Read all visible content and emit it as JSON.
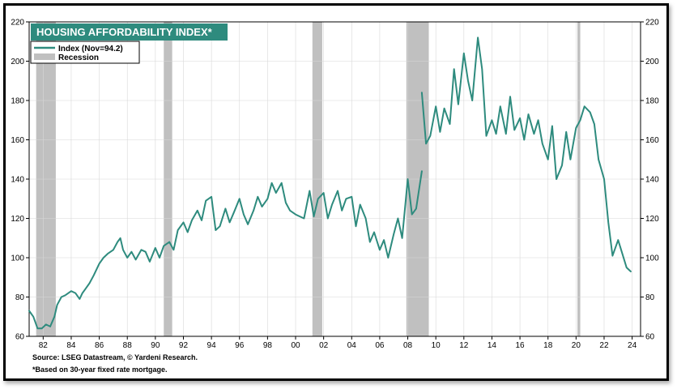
{
  "chart_data": {
    "type": "line",
    "title": "HOUSING AFFORDABILITY INDEX*",
    "legend": [
      {
        "label": "Index (Nov=94.2)",
        "kind": "line",
        "color": "#2e8b7e"
      },
      {
        "label": "Recession",
        "kind": "band",
        "color": "#c0c0c0"
      }
    ],
    "legend_placement": "top-left",
    "grid": true,
    "ylim": [
      60,
      220
    ],
    "y_ticks": [
      "60",
      "80",
      "100",
      "120",
      "140",
      "160",
      "180",
      "200",
      "220"
    ],
    "xlim": [
      1981,
      2024.6
    ],
    "x_ticks": [
      "82",
      "84",
      "86",
      "88",
      "90",
      "92",
      "94",
      "96",
      "98",
      "00",
      "02",
      "04",
      "06",
      "08",
      "10",
      "12",
      "14",
      "16",
      "18",
      "20",
      "22",
      "24"
    ],
    "recessions": [
      [
        1981.5,
        1982.9
      ],
      [
        1990.6,
        1991.2
      ],
      [
        2001.2,
        2001.9
      ],
      [
        2007.9,
        2009.5
      ],
      [
        2020.1,
        2020.3
      ]
    ],
    "series": [
      {
        "name": "Index (Nov=94.2)",
        "color": "#2e8b7e",
        "segments": [
          {
            "x": [
              1981.0,
              1981.3,
              1981.6,
              1981.9,
              1982.2,
              1982.5,
              1982.8,
              1983.0,
              1983.3,
              1983.6,
              1984.0,
              1984.3,
              1984.6,
              1984.8,
              1985.0,
              1985.3,
              1985.6,
              1986.0,
              1986.3,
              1986.6,
              1987.0,
              1987.3,
              1987.5,
              1987.7,
              1988.0,
              1988.3,
              1988.6,
              1989.0,
              1989.3,
              1989.6,
              1990.0,
              1990.3,
              1990.6,
              1991.0,
              1991.3,
              1991.6,
              1992.0,
              1992.3,
              1992.6,
              1993.0,
              1993.3,
              1993.6,
              1994.0,
              1994.3,
              1994.6,
              1995.0,
              1995.3,
              1995.6,
              1996.0,
              1996.3,
              1996.6,
              1997.0,
              1997.3,
              1997.6,
              1998.0,
              1998.3,
              1998.6,
              1999.0,
              1999.3,
              1999.6,
              2000.0,
              2000.3,
              2000.6,
              2001.0,
              2001.3,
              2001.6,
              2002.0,
              2002.3,
              2002.6,
              2003.0,
              2003.3,
              2003.6,
              2004.0,
              2004.3,
              2004.6,
              2005.0,
              2005.3,
              2005.6,
              2006.0,
              2006.3,
              2006.6,
              2007.0,
              2007.3,
              2007.6,
              2008.0,
              2008.3,
              2008.6,
              2009.0
            ],
            "y": [
              73,
              70,
              64,
              64,
              66,
              65,
              70,
              76,
              80,
              81,
              83,
              82,
              79,
              82,
              84,
              87,
              91,
              97,
              100,
              102,
              104,
              108,
              110,
              104,
              100,
              103,
              99,
              104,
              103,
              98,
              105,
              100,
              106,
              108,
              104,
              114,
              118,
              113,
              119,
              124,
              119,
              129,
              131,
              114,
              116,
              125,
              118,
              123,
              130,
              122,
              117,
              124,
              131,
              126,
              130,
              138,
              133,
              138,
              128,
              124,
              122,
              121,
              120,
              134,
              121,
              130,
              133,
              120,
              127,
              134,
              124,
              130,
              131,
              116,
              127,
              120,
              108,
              113,
              104,
              109,
              100,
              112,
              120,
              110,
              140,
              122,
              125,
              144
            ]
          },
          {
            "x": [
              2009.0,
              2009.3,
              2009.6,
              2010.0,
              2010.3,
              2010.6,
              2011.0,
              2011.3,
              2011.6,
              2012.0,
              2012.3,
              2012.6,
              2013.0,
              2013.3,
              2013.6,
              2014.0,
              2014.3,
              2014.6,
              2015.0,
              2015.3,
              2015.6,
              2016.0,
              2016.3,
              2016.6,
              2017.0,
              2017.3,
              2017.6,
              2018.0,
              2018.3,
              2018.6,
              2019.0,
              2019.3,
              2019.6,
              2020.0,
              2020.3,
              2020.6,
              2021.0,
              2021.3,
              2021.6,
              2022.0,
              2022.3,
              2022.6,
              2023.0,
              2023.3,
              2023.6,
              2023.9
            ],
            "y": [
              184,
              158,
              162,
              177,
              164,
              176,
              168,
              196,
              178,
              204,
              190,
              180,
              212,
              196,
              162,
              170,
              163,
              177,
              163,
              182,
              165,
              171,
              160,
              173,
              163,
              170,
              158,
              150,
              167,
              140,
              147,
              164,
              150,
              166,
              170,
              177,
              174,
              168,
              150,
              140,
              118,
              101,
              109,
              102,
              95,
              93
            ]
          }
        ]
      }
    ]
  },
  "footer": {
    "source": "Source: LSEG Datastream, © Yardeni Research.",
    "note": "*Based on 30-year fixed rate mortgage."
  }
}
